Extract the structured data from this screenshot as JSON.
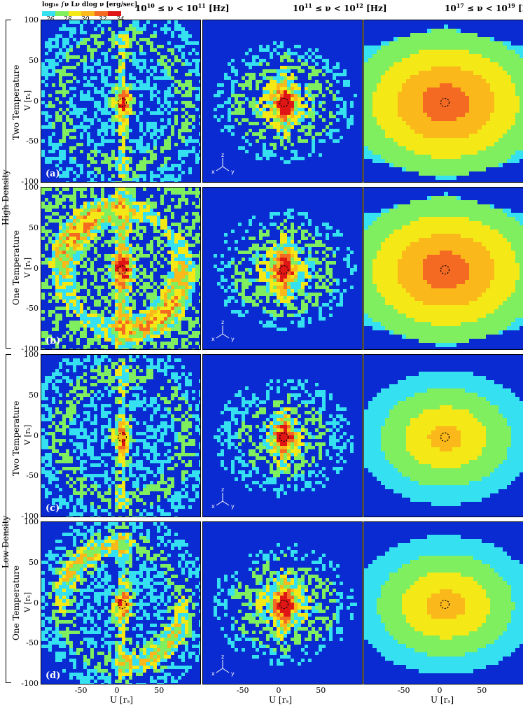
{
  "chart_data": {
    "type": "heatmap",
    "colorbar": {
      "title": "log₁₀ ∫ν Lν dlog ν [erg/sec]",
      "ticks": [
        "26",
        "28",
        "30",
        "32",
        "34"
      ],
      "colors": [
        "#35e0f0",
        "#7fef60",
        "#f4e816",
        "#fbb81a",
        "#f56a22",
        "#e01515"
      ],
      "range": [
        25,
        35
      ]
    },
    "columns": [
      {
        "title_base": "10",
        "title_exp1": "10",
        "title_mid": " ≤ ν < 10",
        "title_exp2": "11",
        "title_unit": " [Hz]"
      },
      {
        "title_base": "10",
        "title_exp1": "11",
        "title_mid": " ≤ ν < 10",
        "title_exp2": "12",
        "title_unit": " [Hz]"
      },
      {
        "title_base": "10",
        "title_exp1": "17",
        "title_mid": " ≤ ν < 10",
        "title_exp2": "19",
        "title_unit": " [Hz]"
      }
    ],
    "rows": [
      {
        "label": "(a)",
        "model": "Two Temperature",
        "density": "High Density"
      },
      {
        "label": "(b)",
        "model": "One Temperature",
        "density": "High Density"
      },
      {
        "label": "(c)",
        "model": "Two Temperature",
        "density": "Low Density"
      },
      {
        "label": "(d)",
        "model": "One Temperature",
        "density": "Low Density"
      }
    ],
    "group_labels": [
      "High Density",
      "Low Density"
    ],
    "row_models": [
      "Two Temperature",
      "One Temperature",
      "Two Temperature",
      "One Temperature"
    ],
    "panel_labels": [
      "(a)",
      "(b)",
      "(c)",
      "(d)"
    ],
    "ylabel": "V [rₛ]",
    "xlabel": "U [rₛ]",
    "xlim": [
      -100,
      100
    ],
    "ylim": [
      -100,
      100
    ],
    "y_ticks": [
      "100",
      "50",
      "0",
      "-50",
      "-100"
    ],
    "x_ticks": [
      "-50",
      "0",
      "50"
    ],
    "axis_triad": [
      "x",
      "y",
      "z"
    ],
    "peak_level": [
      [
        34,
        34,
        33
      ],
      [
        33,
        34,
        34
      ],
      [
        32,
        34,
        32
      ],
      [
        33,
        33,
        32
      ]
    ]
  }
}
